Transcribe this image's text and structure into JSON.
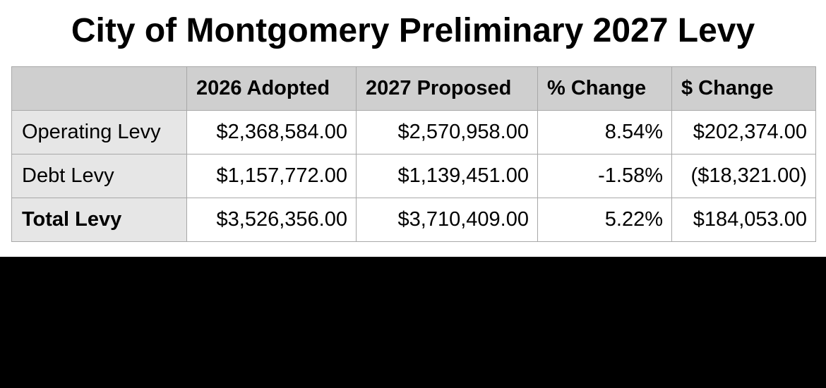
{
  "title": "City of Montgomery Preliminary 2027 Levy",
  "table": {
    "headers": [
      "",
      "2026 Adopted",
      "2027 Proposed",
      "% Change",
      "$ Change"
    ],
    "rows": [
      {
        "label": "Operating Levy",
        "bold": false,
        "cells": [
          "$2,368,584.00",
          "$2,570,958.00",
          "8.54%",
          "$202,374.00"
        ]
      },
      {
        "label": "Debt Levy",
        "bold": false,
        "cells": [
          "$1,157,772.00",
          "$1,139,451.00",
          "-1.58%",
          "($18,321.00)"
        ]
      },
      {
        "label": "Total Levy",
        "bold": true,
        "cells": [
          "$3,526,356.00",
          "$3,710,409.00",
          "5.22%",
          "$184,053.00"
        ]
      }
    ]
  },
  "colors": {
    "header_bg": "#cfcfcf",
    "row_label_bg": "#e6e6e6",
    "cell_bg": "#ffffff",
    "grid": "#a8a8a8",
    "lower_band": "#000000"
  }
}
